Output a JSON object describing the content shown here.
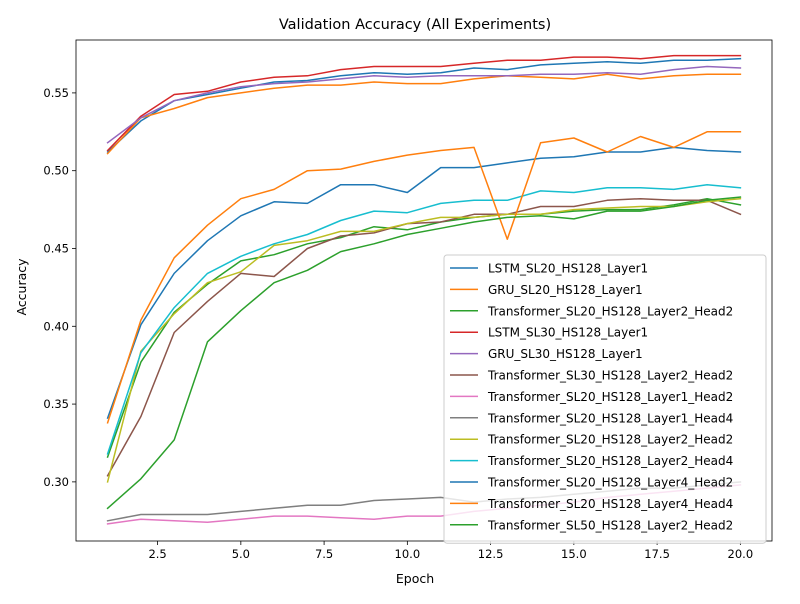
{
  "chart_data": {
    "type": "line",
    "title": "Validation Accuracy (All Experiments)",
    "xlabel": "Epoch",
    "ylabel": "Accuracy",
    "xlim": [
      0.05,
      20.95
    ],
    "ylim": [
      0.262,
      0.584
    ],
    "xticks": [
      2.5,
      5.0,
      7.5,
      10.0,
      12.5,
      15.0,
      17.5,
      20.0
    ],
    "yticks": [
      0.3,
      0.35,
      0.4,
      0.45,
      0.5,
      0.55
    ],
    "grid": false,
    "legend_position": "lower right",
    "x": [
      1,
      2,
      3,
      4,
      5,
      6,
      7,
      8,
      9,
      10,
      11,
      12,
      13,
      14,
      15,
      16,
      17,
      18,
      19,
      20
    ],
    "series": [
      {
        "name": "LSTM_SL20_HS128_Layer1",
        "color": "#1f77b4",
        "values": [
          0.512,
          0.532,
          0.545,
          0.549,
          0.553,
          0.557,
          0.558,
          0.561,
          0.563,
          0.562,
          0.563,
          0.566,
          0.565,
          0.568,
          0.569,
          0.57,
          0.569,
          0.571,
          0.571,
          0.572
        ]
      },
      {
        "name": "GRU_SL20_HS128_Layer1",
        "color": "#ff7f0e",
        "values": [
          0.511,
          0.534,
          0.54,
          0.547,
          0.55,
          0.553,
          0.555,
          0.555,
          0.557,
          0.556,
          0.556,
          0.559,
          0.561,
          0.56,
          0.559,
          0.562,
          0.559,
          0.561,
          0.562,
          0.562
        ]
      },
      {
        "name": "Transformer_SL20_HS128_Layer2_Head2",
        "color": "#2ca02c",
        "values": [
          0.316,
          0.377,
          0.409,
          0.427,
          0.442,
          0.446,
          0.453,
          0.457,
          0.464,
          0.462,
          0.467,
          0.47,
          0.472,
          0.472,
          0.474,
          0.475,
          0.475,
          0.478,
          0.482,
          0.478
        ]
      },
      {
        "name": "LSTM_SL30_HS128_Layer1",
        "color": "#d62728",
        "values": [
          0.513,
          0.535,
          0.549,
          0.551,
          0.557,
          0.56,
          0.561,
          0.565,
          0.567,
          0.567,
          0.567,
          0.569,
          0.571,
          0.571,
          0.573,
          0.573,
          0.572,
          0.574,
          0.574,
          0.574
        ]
      },
      {
        "name": "GRU_SL30_HS128_Layer1",
        "color": "#9467bd",
        "values": [
          0.518,
          0.534,
          0.545,
          0.55,
          0.554,
          0.556,
          0.557,
          0.559,
          0.561,
          0.56,
          0.561,
          0.561,
          0.561,
          0.562,
          0.562,
          0.563,
          0.562,
          0.565,
          0.567,
          0.566
        ]
      },
      {
        "name": "Transformer_SL30_HS128_Layer2_Head2",
        "color": "#8c564b",
        "values": [
          0.304,
          0.342,
          0.396,
          0.416,
          0.434,
          0.432,
          0.45,
          0.458,
          0.46,
          0.466,
          0.467,
          0.472,
          0.472,
          0.477,
          0.477,
          0.481,
          0.482,
          0.481,
          0.481,
          0.472
        ]
      },
      {
        "name": "Transformer_SL20_HS128_Layer1_Head2",
        "color": "#e377c2",
        "values": [
          0.273,
          0.276,
          0.275,
          0.274,
          0.276,
          0.278,
          0.278,
          0.277,
          0.276,
          0.278,
          0.278,
          0.281,
          0.283,
          0.285,
          0.287,
          0.29,
          0.292,
          0.294,
          0.296,
          0.298
        ]
      },
      {
        "name": "Transformer_SL20_HS128_Layer1_Head4",
        "color": "#7f7f7f",
        "values": [
          0.275,
          0.279,
          0.279,
          0.279,
          0.281,
          0.283,
          0.285,
          0.285,
          0.288,
          0.289,
          0.29,
          0.287,
          0.289,
          0.29,
          0.292,
          0.294,
          0.296,
          0.296,
          0.298,
          0.3
        ]
      },
      {
        "name": "Transformer_SL20_HS128_Layer2_Head2",
        "color": "#bcbd22",
        "values": [
          0.3,
          0.384,
          0.408,
          0.428,
          0.435,
          0.452,
          0.455,
          0.461,
          0.461,
          0.466,
          0.47,
          0.47,
          0.472,
          0.472,
          0.475,
          0.476,
          0.477,
          0.477,
          0.48,
          0.482
        ]
      },
      {
        "name": "Transformer_SL20_HS128_Layer2_Head4",
        "color": "#17becf",
        "values": [
          0.318,
          0.383,
          0.412,
          0.434,
          0.445,
          0.453,
          0.459,
          0.468,
          0.474,
          0.473,
          0.479,
          0.481,
          0.481,
          0.487,
          0.486,
          0.489,
          0.489,
          0.488,
          0.491,
          0.489
        ]
      },
      {
        "name": "Transformer_SL20_HS128_Layer4_Head2",
        "color": "#1f77b4",
        "values": [
          0.341,
          0.401,
          0.434,
          0.455,
          0.471,
          0.48,
          0.479,
          0.491,
          0.491,
          0.486,
          0.502,
          0.502,
          0.505,
          0.508,
          0.509,
          0.512,
          0.512,
          0.515,
          0.513,
          0.512
        ]
      },
      {
        "name": "Transformer_SL20_HS128_Layer4_Head4",
        "color": "#ff7f0e",
        "values": [
          0.338,
          0.404,
          0.444,
          0.465,
          0.482,
          0.488,
          0.5,
          0.501,
          0.506,
          0.51,
          0.513,
          0.515,
          0.456,
          0.518,
          0.521,
          0.512,
          0.522,
          0.515,
          0.525,
          0.525
        ]
      },
      {
        "name": "Transformer_SL50_HS128_Layer2_Head2",
        "color": "#2ca02c",
        "values": [
          0.283,
          0.302,
          0.327,
          0.39,
          0.41,
          0.428,
          0.436,
          0.448,
          0.453,
          0.459,
          0.463,
          0.467,
          0.47,
          0.471,
          0.469,
          0.474,
          0.474,
          0.477,
          0.481,
          0.483
        ]
      }
    ]
  }
}
